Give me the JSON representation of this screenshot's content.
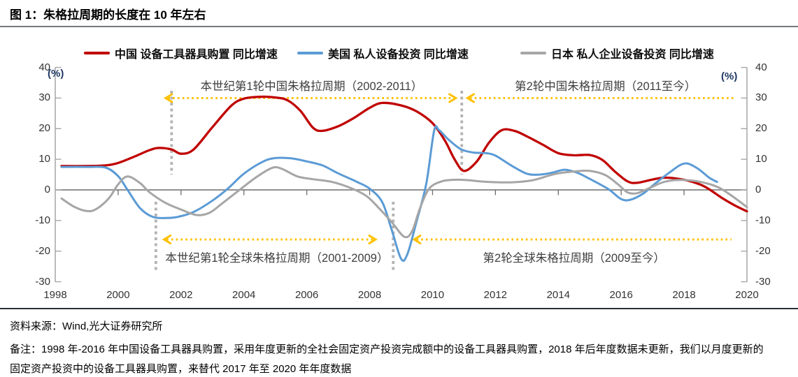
{
  "header": {
    "title": "图 1：朱格拉周期的长度在 10 年左右"
  },
  "legend": {
    "items": [
      {
        "label": "中国 设备工具器具购置 同比增速",
        "color": "#C00000"
      },
      {
        "label": "美国 私人设备投资 同比增速",
        "color": "#5B9BD5"
      },
      {
        "label": "日本 私人企业设备投资 同比增速",
        "color": "#A6A6A6"
      }
    ]
  },
  "chart_data": {
    "type": "line",
    "title": "图 1：朱格拉周期的长度在 10 年左右",
    "unit_label": "(%)",
    "unit_label_color": "#1F3864",
    "x_ticks": [
      "1998",
      "2000",
      "2002",
      "2004",
      "2006",
      "2008",
      "2010",
      "2012",
      "2014",
      "2016",
      "2018",
      "2020"
    ],
    "y_ticks": [
      40,
      30,
      20,
      10,
      0,
      -10,
      -20,
      -30
    ],
    "x_range": [
      1998,
      2020
    ],
    "y_range": [
      -30,
      40
    ],
    "grid": "zero-line-only",
    "legend_position": "top",
    "arrow_color": "#FFC000",
    "divider_color": "#B3B3B3",
    "series": [
      {
        "id": "china",
        "name": "中国 设备工具器具购置 同比增速",
        "color": "#C00000",
        "points": [
          [
            1998.2,
            7.8
          ],
          [
            1999,
            7.8
          ],
          [
            1999.6,
            8
          ],
          [
            2000,
            8.8
          ],
          [
            2000.5,
            10.8
          ],
          [
            2001,
            13
          ],
          [
            2001.3,
            13.7
          ],
          [
            2001.7,
            13.2
          ],
          [
            2002,
            11.8
          ],
          [
            2002.4,
            13.2
          ],
          [
            2003,
            20.5
          ],
          [
            2003.6,
            27.5
          ],
          [
            2004,
            29.8
          ],
          [
            2004.5,
            30.4
          ],
          [
            2005,
            30.2
          ],
          [
            2005.4,
            29.2
          ],
          [
            2005.8,
            25.8
          ],
          [
            2006.2,
            20.3
          ],
          [
            2006.5,
            19.3
          ],
          [
            2007,
            20.8
          ],
          [
            2007.5,
            23.5
          ],
          [
            2008,
            26.8
          ],
          [
            2008.4,
            28.4
          ],
          [
            2009,
            27.6
          ],
          [
            2009.5,
            25.6
          ],
          [
            2010,
            21.8
          ],
          [
            2010.4,
            16
          ],
          [
            2010.7,
            10
          ],
          [
            2011,
            6.2
          ],
          [
            2011.4,
            9.2
          ],
          [
            2011.8,
            15.5
          ],
          [
            2012.2,
            19.5
          ],
          [
            2012.6,
            19.3
          ],
          [
            2013,
            17.5
          ],
          [
            2013.5,
            14.8
          ],
          [
            2014,
            12
          ],
          [
            2014.5,
            11.3
          ],
          [
            2015,
            11.4
          ],
          [
            2015.4,
            9.8
          ],
          [
            2015.8,
            6
          ],
          [
            2016.2,
            2.8
          ],
          [
            2016.5,
            2.3
          ],
          [
            2017,
            3.4
          ],
          [
            2017.4,
            4
          ],
          [
            2018,
            3.3
          ],
          [
            2018.5,
            1.8
          ],
          [
            2018.8,
            0.2
          ],
          [
            2019.2,
            -2.6
          ],
          [
            2019.6,
            -5
          ],
          [
            2020,
            -7
          ]
        ]
      },
      {
        "id": "usa",
        "name": "美国 私人设备投资 同比增速",
        "color": "#5B9BD5",
        "points": [
          [
            1998.2,
            7.5
          ],
          [
            1999,
            7.5
          ],
          [
            1999.6,
            7.3
          ],
          [
            2000,
            4.5
          ],
          [
            2000.3,
            0
          ],
          [
            2000.7,
            -6
          ],
          [
            2001.1,
            -8.8
          ],
          [
            2001.5,
            -9.2
          ],
          [
            2001.9,
            -8.8
          ],
          [
            2002.4,
            -7.2
          ],
          [
            2003,
            -3.5
          ],
          [
            2003.5,
            0.5
          ],
          [
            2004,
            5.3
          ],
          [
            2004.6,
            9.2
          ],
          [
            2005,
            10.4
          ],
          [
            2005.5,
            10.3
          ],
          [
            2006,
            9.3
          ],
          [
            2006.5,
            8
          ],
          [
            2007,
            5.4
          ],
          [
            2007.6,
            2.6
          ],
          [
            2008,
            0.4
          ],
          [
            2008.4,
            -4
          ],
          [
            2008.7,
            -13
          ],
          [
            2009,
            -22.5
          ],
          [
            2009.2,
            -21
          ],
          [
            2009.5,
            -10
          ],
          [
            2009.8,
            2
          ],
          [
            2010.05,
            19.3
          ],
          [
            2010.2,
            19.6
          ],
          [
            2010.5,
            16.5
          ],
          [
            2010.9,
            13.3
          ],
          [
            2011.3,
            12.2
          ],
          [
            2011.7,
            12
          ],
          [
            2012,
            11.2
          ],
          [
            2012.5,
            8
          ],
          [
            2013,
            5.3
          ],
          [
            2013.4,
            5
          ],
          [
            2013.8,
            5.6
          ],
          [
            2014.2,
            6.6
          ],
          [
            2014.6,
            5.6
          ],
          [
            2015,
            3.6
          ],
          [
            2015.6,
            0.2
          ],
          [
            2016,
            -3
          ],
          [
            2016.3,
            -3.2
          ],
          [
            2016.7,
            -1.2
          ],
          [
            2017,
            1.4
          ],
          [
            2017.5,
            5.4
          ],
          [
            2018,
            8.6
          ],
          [
            2018.4,
            7.2
          ],
          [
            2018.8,
            4
          ],
          [
            2019.05,
            2.6
          ]
        ]
      },
      {
        "id": "japan",
        "name": "日本 私人企业设备投资 同比增速",
        "color": "#A6A6A6",
        "points": [
          [
            1998.2,
            -2.8
          ],
          [
            1998.6,
            -5.5
          ],
          [
            1999,
            -6.9
          ],
          [
            1999.3,
            -6.3
          ],
          [
            1999.7,
            -2.8
          ],
          [
            2000,
            1.8
          ],
          [
            2000.3,
            4.4
          ],
          [
            2000.7,
            2.2
          ],
          [
            2001,
            -0.8
          ],
          [
            2001.5,
            -4.2
          ],
          [
            2002,
            -6.4
          ],
          [
            2002.5,
            -8.2
          ],
          [
            2002.9,
            -7.5
          ],
          [
            2003.3,
            -4.5
          ],
          [
            2003.9,
            0.3
          ],
          [
            2004.4,
            4.2
          ],
          [
            2004.9,
            7.2
          ],
          [
            2005.2,
            6.9
          ],
          [
            2005.7,
            4.4
          ],
          [
            2006.2,
            3.5
          ],
          [
            2006.8,
            2.6
          ],
          [
            2007.4,
            0.6
          ],
          [
            2007.9,
            -2
          ],
          [
            2008.3,
            -6
          ],
          [
            2008.7,
            -10.5
          ],
          [
            2009.1,
            -15.3
          ],
          [
            2009.35,
            -13.5
          ],
          [
            2009.6,
            -6
          ],
          [
            2009.9,
            0.5
          ],
          [
            2010.3,
            2.8
          ],
          [
            2010.7,
            3.3
          ],
          [
            2011.1,
            3.2
          ],
          [
            2011.5,
            2.8
          ],
          [
            2012,
            2.5
          ],
          [
            2012.6,
            2.5
          ],
          [
            2013.2,
            3.2
          ],
          [
            2013.9,
            5.2
          ],
          [
            2014.5,
            6
          ],
          [
            2015,
            6.2
          ],
          [
            2015.5,
            4.8
          ],
          [
            2015.9,
            1.8
          ],
          [
            2016.2,
            -0.8
          ],
          [
            2016.5,
            -1.1
          ],
          [
            2016.9,
            0.6
          ],
          [
            2017.3,
            2.4
          ],
          [
            2017.7,
            3.2
          ],
          [
            2018.2,
            3.1
          ],
          [
            2018.7,
            2.2
          ],
          [
            2019.1,
            0.8
          ],
          [
            2019.5,
            -1.8
          ],
          [
            2020,
            -5.6
          ]
        ]
      }
    ],
    "cycle_annotations": [
      {
        "text": "本世纪第1轮中国朱格拉周期（2002-2011）",
        "center_year": 2006.15,
        "level": "top"
      },
      {
        "text": "第2轮中国朱格拉周期（2011至今）",
        "center_year": 2015.5,
        "level": "top"
      },
      {
        "text": "本世纪第1轮全球朱格拉周期（2001-2009）",
        "center_year": 2005.05,
        "level": "bottom"
      },
      {
        "text": "第2轮全球朱格拉周期（2009至今）",
        "center_year": 2014.5,
        "level": "bottom"
      }
    ],
    "cycle_arrows": [
      {
        "from_year": 2001.5,
        "to_year": 2010.75,
        "level": "top",
        "heads": "both"
      },
      {
        "from_year": 2011.1,
        "to_year": 2019.65,
        "level": "top",
        "heads": "left"
      },
      {
        "from_year": 2001.45,
        "to_year": 2008.2,
        "level": "bottom",
        "heads": "both"
      },
      {
        "from_year": 2009.4,
        "to_year": 2019.55,
        "level": "bottom",
        "heads": "left"
      }
    ],
    "phase_dividers": [
      {
        "year": 2001.7,
        "level": "top"
      },
      {
        "year": 2010.93,
        "level": "top"
      },
      {
        "year": 2001.2,
        "level": "bottom"
      },
      {
        "year": 2008.75,
        "level": "bottom"
      }
    ]
  },
  "footer": {
    "source": "资料来源：Wind,光大证券研究所",
    "note_line1": "备注：1998 年-2016 年中国设备工具器具购置，采用年度更新的全社会固定资产投资完成额中的设备工具器具购置，2018 年后年度数据未更新，我们以月度更新的",
    "note_line2": "固定资产投资中的设备工具器具购置，来替代 2017 年至 2020 年年度数据"
  }
}
